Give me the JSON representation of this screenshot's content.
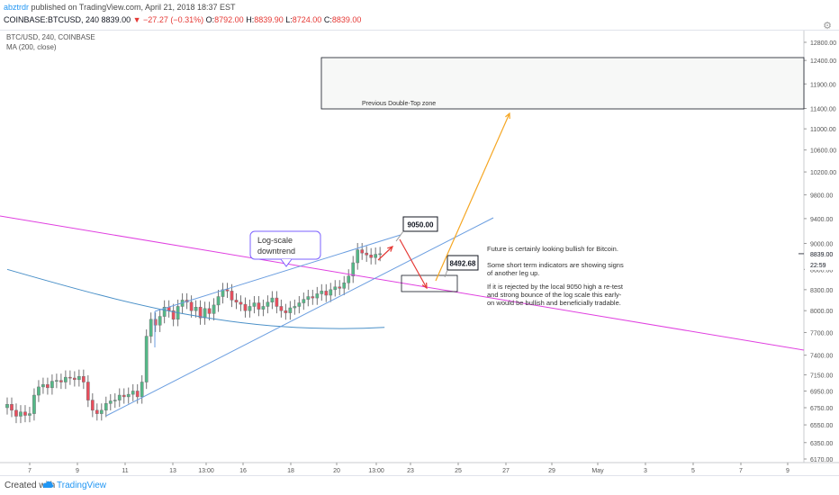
{
  "header": {
    "author": "abztrdr",
    "published": "published on TradingView.com, April 21, 2018 18:37 EST",
    "symbol": "COINBASE:BTCUSD, 240",
    "last": "8839.00",
    "arrow": "▼",
    "change": "−27.27 (−0.31%)",
    "open_label": "O:",
    "open": "8792.00",
    "high_label": "H:",
    "high": "8839.90",
    "low_label": "L:",
    "low": "8724.00",
    "close_label": "C:",
    "close": "8839.00"
  },
  "legend": {
    "symbol_line": "BTC/USD, 240, COINBASE",
    "ma_line": "MA (200, close)"
  },
  "footer": {
    "created": "Created with",
    "brand": "TradingView"
  },
  "colors": {
    "up": "#53b987",
    "down": "#eb4d5c",
    "wick": "#737375",
    "ma": "#4a90c8",
    "channel": "#6b9ee0",
    "trend": "#e040e0",
    "orange": "#f5a623",
    "red": "#e53935",
    "price_tag": "#131722",
    "time_tag": "#131722"
  },
  "chart_data": {
    "type": "candlestick",
    "title": "BTC/USD, 240, COINBASE",
    "indicator": "MA (200, close)",
    "y_scale": "log",
    "ylim": [
      6170,
      12800
    ],
    "y_ticks": [
      6170,
      6350,
      6550,
      6750,
      6950,
      7150,
      7400,
      7700,
      8000,
      8300,
      8600,
      9000,
      9400,
      9800,
      10200,
      10600,
      11000,
      11400,
      11900,
      12400,
      12800
    ],
    "y_tick_labels": [
      "6170.00",
      "6350.00",
      "6550.00",
      "6750.00",
      "6950.00",
      "7150.00",
      "7400.00",
      "7700.00",
      "8000.00",
      "8300.00",
      "8600.00",
      "9000.00",
      "9400.00",
      "9800.00",
      "10200.00",
      "10600.00",
      "11000.00",
      "11400.00",
      "11900.00",
      "12400.00",
      "12800.00"
    ],
    "x_ticks": [
      "7",
      "9",
      "11",
      "13",
      "13:00",
      "16",
      "18",
      "20",
      "13:00",
      "23",
      "25",
      "27",
      "29",
      "May",
      "3",
      "5",
      "7",
      "9"
    ],
    "last_price_label": "8839.00",
    "time_to_close_label": "22:59",
    "closes": [
      6790,
      6720,
      6650,
      6700,
      6660,
      6680,
      6900,
      7000,
      7030,
      6990,
      7070,
      7080,
      7060,
      7120,
      7110,
      7090,
      7130,
      7060,
      6840,
      6720,
      6680,
      6720,
      6800,
      6830,
      6840,
      6900,
      6880,
      6910,
      6950,
      6880,
      7060,
      7650,
      7880,
      7800,
      7920,
      8050,
      8000,
      7880,
      8060,
      8150,
      8120,
      8000,
      8050,
      7900,
      8030,
      7960,
      8080,
      8200,
      8300,
      8280,
      8150,
      8120,
      8090,
      8000,
      8060,
      8110,
      8020,
      8060,
      8120,
      8180,
      8060,
      8000,
      7970,
      8040,
      8060,
      8110,
      8160,
      8200,
      8180,
      8240,
      8280,
      8220,
      8300,
      8340,
      8320,
      8400,
      8500,
      8700,
      8900,
      8850,
      8820,
      8780,
      8830,
      8839
    ],
    "ma_200": [
      [
        0,
        8600
      ],
      [
        28,
        8200
      ],
      [
        56,
        7850
      ],
      [
        84,
        7720
      ]
    ],
    "annotations": {
      "callout": "Log-scale downtrend",
      "zone": "Previous Double-Top zone",
      "level_high": "9050.00",
      "level_low": "8492.68",
      "note_1": "Future is certainly looking bullish for Bitcoin.",
      "note_2": "Some short term indicators are showing signs of another leg up.",
      "note_3": "If it is rejected by the local 9050 high a re-test and strong bounce of the log scale this early-on would be bullish and beneficially tradable."
    }
  }
}
